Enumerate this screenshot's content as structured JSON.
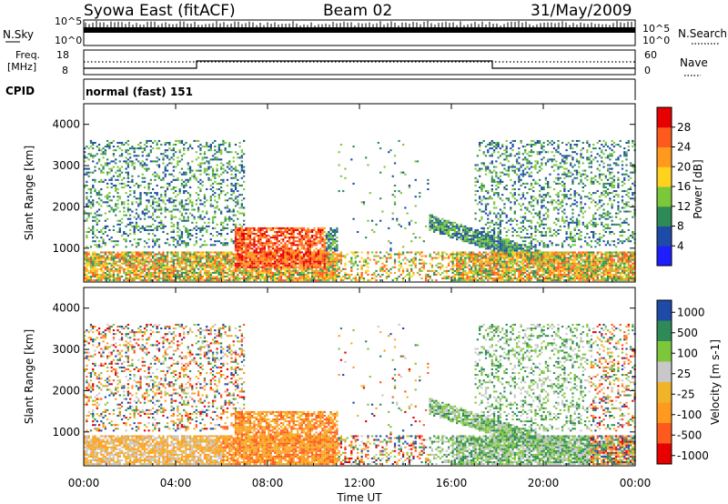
{
  "header": {
    "title": "Syowa East (fitACF)",
    "beam": "Beam 02",
    "date": "31/May/2009"
  },
  "panel_labels": {
    "left_sky": "N.Sky",
    "left_freq_line1": "Freq.",
    "left_freq_line2": "[MHz]",
    "left_cpid": "CPID",
    "right_search": "N.Search",
    "right_nave": "Nave",
    "sky_ticks_left": [
      "10^5",
      "10^0"
    ],
    "sky_ticks_right": [
      "10^5",
      "10^0"
    ],
    "freq_ticks": [
      "18",
      "8"
    ],
    "nave_ticks": [
      "60",
      "0"
    ],
    "cpid_text": "normal (fast) 151"
  },
  "x_axis": {
    "label": "Time UT",
    "ticks": [
      "00:00",
      "04:00",
      "08:00",
      "12:00",
      "16:00",
      "20:00",
      "00:00"
    ]
  },
  "colors": {
    "power": [
      "#1e1eff",
      "#1e4aa8",
      "#2e8b57",
      "#7dc83a",
      "#ffd21e",
      "#ff9a1e",
      "#ff5a1e",
      "#e60000"
    ],
    "velocity": [
      "#e60000",
      "#ff5a1e",
      "#ff9a1e",
      "#f0b428",
      "#c8c8c8",
      "#7dc83a",
      "#2e8b57",
      "#1e4aa8"
    ]
  },
  "chart_data": [
    {
      "type": "heatmap",
      "name": "power",
      "xlabel": "Time UT",
      "ylabel": "Slant Range [km]",
      "x_range_hours": [
        0,
        24
      ],
      "y_range_km": [
        180,
        4500
      ],
      "yticks": [
        "1000",
        "2000",
        "3000",
        "4000"
      ],
      "colorbar": {
        "label": "Power [dB]",
        "ticks": [
          "4",
          "8",
          "12",
          "16",
          "20",
          "24",
          "28"
        ],
        "range": [
          0,
          30
        ]
      }
    },
    {
      "type": "heatmap",
      "name": "velocity",
      "xlabel": "Time UT",
      "ylabel": "Slant Range [km]",
      "x_range_hours": [
        0,
        24
      ],
      "y_range_km": [
        180,
        4500
      ],
      "yticks": [
        "1000",
        "2000",
        "3000",
        "4000"
      ],
      "colorbar": {
        "label": "Velocity [m s-1]",
        "ticks": [
          "1000",
          "500",
          "100",
          "25",
          "-25",
          "-100",
          "-500",
          "-1000"
        ]
      }
    }
  ]
}
